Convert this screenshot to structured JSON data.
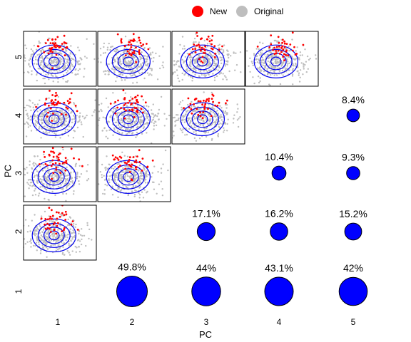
{
  "chart_data": {
    "type": "scatter",
    "xlabel": "PC",
    "ylabel": "PC",
    "pcs": [
      "1",
      "2",
      "3",
      "4",
      "5"
    ],
    "legend": {
      "placement": "top",
      "entries": [
        {
          "name": "New",
          "color": "#ff0000"
        },
        {
          "name": "Original",
          "color": "#bebebe"
        }
      ]
    },
    "scatter_panels": [
      {
        "row_pc": "5",
        "col_pc": "1"
      },
      {
        "row_pc": "5",
        "col_pc": "2"
      },
      {
        "row_pc": "5",
        "col_pc": "3"
      },
      {
        "row_pc": "5",
        "col_pc": "4"
      },
      {
        "row_pc": "4",
        "col_pc": "1"
      },
      {
        "row_pc": "4",
        "col_pc": "2"
      },
      {
        "row_pc": "4",
        "col_pc": "3"
      },
      {
        "row_pc": "3",
        "col_pc": "1"
      },
      {
        "row_pc": "3",
        "col_pc": "2"
      },
      {
        "row_pc": "2",
        "col_pc": "1"
      }
    ],
    "overlap_cells": [
      {
        "row_pc": "4",
        "col_pc": "5",
        "label": "8.4%",
        "value": 8.4
      },
      {
        "row_pc": "3",
        "col_pc": "4",
        "label": "10.4%",
        "value": 10.4
      },
      {
        "row_pc": "3",
        "col_pc": "5",
        "label": "9.3%",
        "value": 9.3
      },
      {
        "row_pc": "2",
        "col_pc": "3",
        "label": "17.1%",
        "value": 17.1
      },
      {
        "row_pc": "2",
        "col_pc": "4",
        "label": "16.2%",
        "value": 16.2
      },
      {
        "row_pc": "2",
        "col_pc": "5",
        "label": "15.2%",
        "value": 15.2
      },
      {
        "row_pc": "1",
        "col_pc": "2",
        "label": "49.8%",
        "value": 49.8
      },
      {
        "row_pc": "1",
        "col_pc": "3",
        "label": "44%",
        "value": 44
      },
      {
        "row_pc": "1",
        "col_pc": "4",
        "label": "43.1%",
        "value": 43.1
      },
      {
        "row_pc": "1",
        "col_pc": "5",
        "label": "42%",
        "value": 42
      }
    ],
    "colors": {
      "new": "#ff0000",
      "original": "#bebebe",
      "contour": "#0000ee",
      "circle_fill": "#0000ff",
      "frame": "#000000"
    }
  }
}
